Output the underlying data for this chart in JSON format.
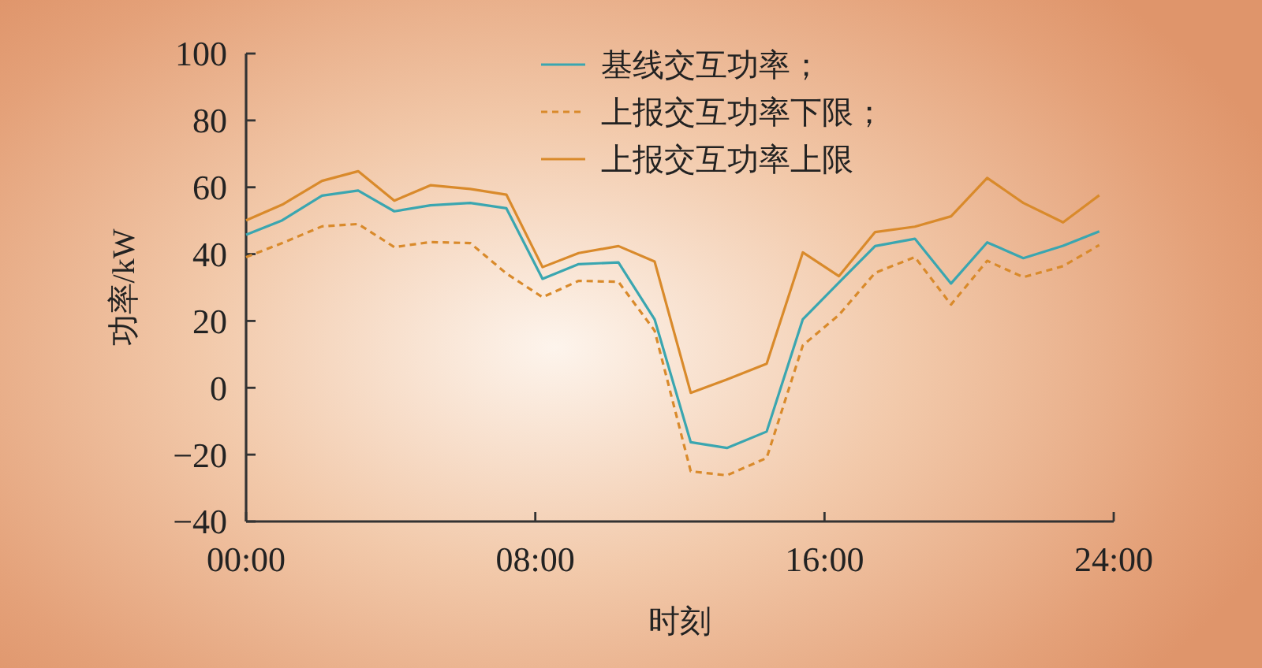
{
  "chart_data": {
    "type": "line",
    "xlabel": "时刻",
    "ylabel": "功率/kW",
    "x": [
      0,
      1,
      2.1,
      3.1,
      4.1,
      5.1,
      6.2,
      7.2,
      8.2,
      9.2,
      10.3,
      11.3,
      12.3,
      13.3,
      14.4,
      15.4,
      16.4,
      17.4,
      18.5,
      19.5,
      20.5,
      21.5,
      22.6,
      23.6
    ],
    "xlim": [
      0,
      24
    ],
    "xticks": [
      {
        "value": 0,
        "label": "00:00"
      },
      {
        "value": 8,
        "label": "08:00"
      },
      {
        "value": 16,
        "label": "16:00"
      },
      {
        "value": 24,
        "label": "24:00"
      }
    ],
    "ylim": [
      -40,
      100
    ],
    "yticks": [
      -40,
      -20,
      0,
      20,
      40,
      60,
      80,
      100
    ],
    "legend": "top",
    "series": [
      {
        "name": "基线交互功率；",
        "color": "#3aa6b0",
        "line_style": "solid",
        "values": [
          45.8,
          50.1,
          57.5,
          59.0,
          52.8,
          54.6,
          55.3,
          53.7,
          32.6,
          37.0,
          37.5,
          20.5,
          -16.3,
          -18.0,
          -13.1,
          20.5,
          31.5,
          42.4,
          44.6,
          31.2,
          43.5,
          38.8,
          42.5,
          46.8
        ]
      },
      {
        "name": "上报交互功率下限；",
        "color": "#d98a2b",
        "line_style": "dashed",
        "values": [
          39.1,
          43.3,
          48.3,
          49.0,
          42.1,
          43.6,
          43.3,
          34.2,
          27.1,
          32.0,
          31.7,
          17.1,
          -25.0,
          -26.2,
          -21.0,
          12.7,
          21.8,
          34.4,
          39.1,
          24.9,
          38.0,
          33.1,
          36.4,
          42.7
        ]
      },
      {
        "name": "上报交互功率上限",
        "color": "#d98a2b",
        "line_style": "solid",
        "values": [
          50.1,
          54.8,
          61.9,
          64.8,
          56.0,
          60.6,
          59.5,
          57.8,
          36.1,
          40.3,
          42.4,
          37.8,
          -1.5,
          2.5,
          7.2,
          40.5,
          33.4,
          46.6,
          48.2,
          51.3,
          62.8,
          55.3,
          49.5,
          57.6
        ]
      }
    ]
  }
}
